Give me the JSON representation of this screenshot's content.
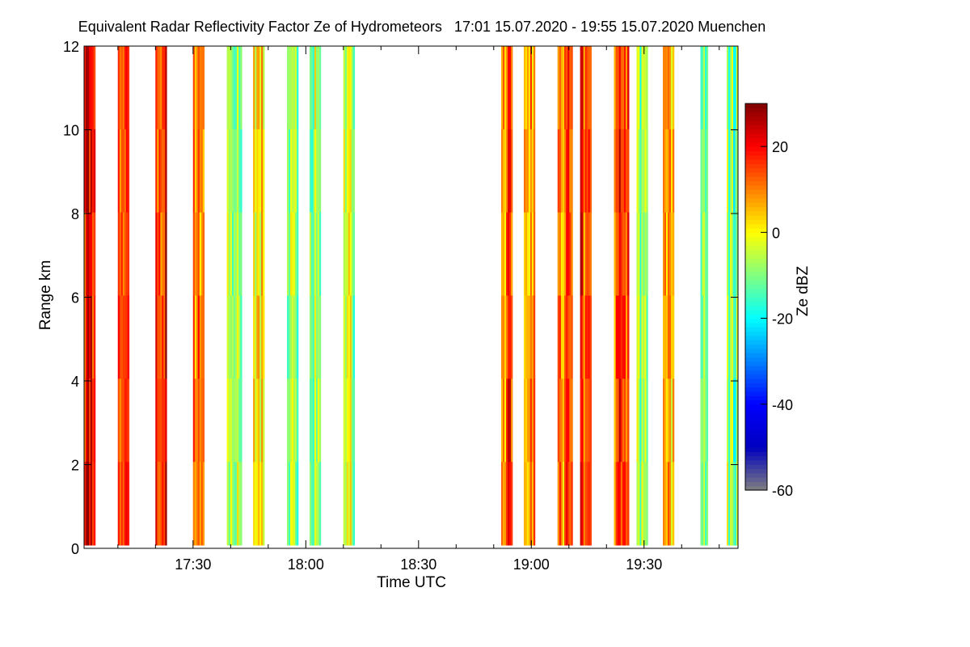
{
  "chart_data": {
    "type": "heatmap",
    "title": "Equivalent Radar Reflectivity Factor Ze of Hydrometeors   17:01 15.07.2020 - 19:55 15.07.2020 Muenchen",
    "xlabel": "Time UTC",
    "ylabel": "Range km",
    "colorbar_label": "Ze dBZ",
    "x_range": [
      "17:01",
      "19:55"
    ],
    "x_ticks": [
      "17:30",
      "18:00",
      "18:30",
      "19:00",
      "19:30"
    ],
    "y_range": [
      0,
      12
    ],
    "y_ticks": [
      0,
      2,
      4,
      6,
      8,
      10,
      12
    ],
    "z_range": [
      -60,
      30
    ],
    "z_ticks": [
      -60,
      -40,
      -20,
      0,
      20
    ],
    "colormap": [
      "#808080",
      "#0000bf",
      "#0000ff",
      "#0080ff",
      "#00ffff",
      "#80ff80",
      "#ffff00",
      "#ff8000",
      "#ff0000",
      "#800000"
    ],
    "no_data_color": "#808080",
    "scans": [
      {
        "start": "17:01",
        "end": "17:04",
        "dominant_ze": 22
      },
      {
        "start": "17:10",
        "end": "17:13",
        "dominant_ze": 18
      },
      {
        "start": "17:20",
        "end": "17:23",
        "dominant_ze": 18
      },
      {
        "start": "17:30",
        "end": "17:33",
        "dominant_ze": 12
      },
      {
        "start": "17:39",
        "end": "17:43",
        "dominant_ze": -5
      },
      {
        "start": "17:46",
        "end": "17:49",
        "dominant_ze": 5
      },
      {
        "start": "17:55",
        "end": "17:58",
        "dominant_ze": -10
      },
      {
        "start": "18:01",
        "end": "18:04",
        "dominant_ze": -8
      },
      {
        "start": "18:10",
        "end": "18:13",
        "dominant_ze": -5
      },
      {
        "start": "18:52",
        "end": "18:55",
        "dominant_ze": 12
      },
      {
        "start": "18:58",
        "end": "19:01",
        "dominant_ze": 8
      },
      {
        "start": "19:07",
        "end": "19:11",
        "dominant_ze": 10
      },
      {
        "start": "19:13",
        "end": "19:16",
        "dominant_ze": 15
      },
      {
        "start": "19:22",
        "end": "19:26",
        "dominant_ze": 15
      },
      {
        "start": "19:28",
        "end": "19:31",
        "dominant_ze": -10
      },
      {
        "start": "19:35",
        "end": "19:38",
        "dominant_ze": 5
      },
      {
        "start": "19:45",
        "end": "19:47",
        "dominant_ze": -10
      },
      {
        "start": "19:52",
        "end": "19:55",
        "dominant_ze": -10
      }
    ]
  }
}
